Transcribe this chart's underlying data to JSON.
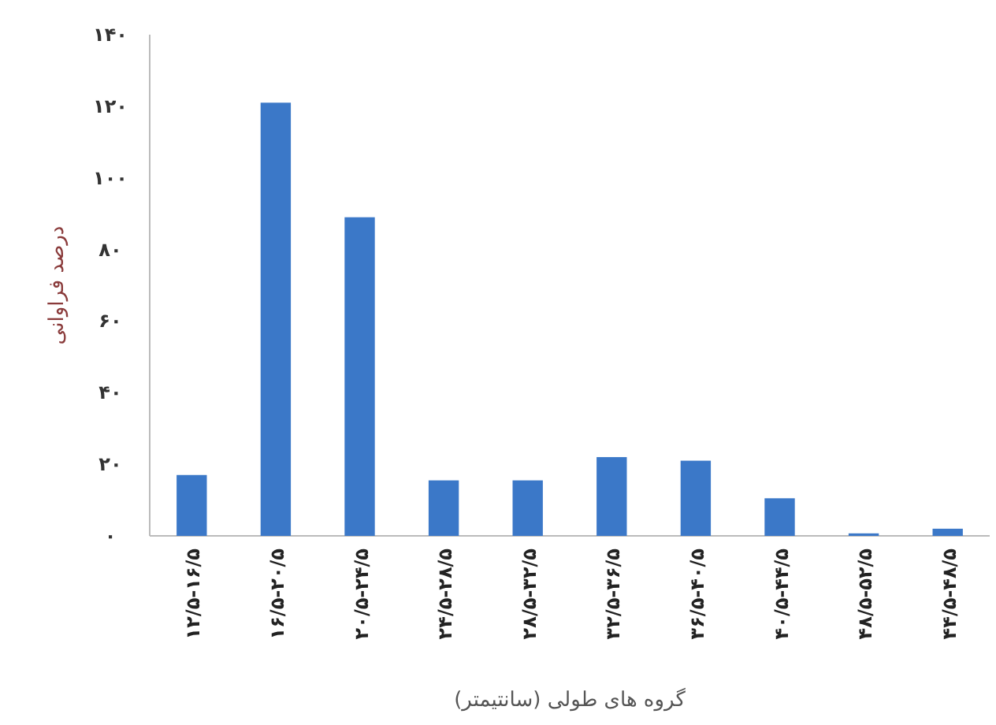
{
  "chart_data": {
    "type": "bar",
    "xlabel": "گروه های طولی (سانتیمتر)",
    "ylabel": "درصد فراوانی",
    "categories": [
      "۱۲/۵-۱۶/۵",
      "۱۶/۵-۲۰/۵",
      "۲۰/۵-۲۴/۵",
      "۲۴/۵-۲۸/۵",
      "۲۸/۵-۳۲/۵",
      "۳۲/۵-۳۶/۵",
      "۳۶/۵-۴۰/۵",
      "۴۰/۵-۴۴/۵",
      "۴۸/۵-۵۲/۵",
      "۴۴/۵-۴۸/۵"
    ],
    "values": [
      17,
      121,
      89,
      15.5,
      15.5,
      22,
      21,
      10.5,
      0.7,
      2
    ],
    "color": "#3b78c8",
    "ylim": [
      0,
      140
    ],
    "yticks": [
      {
        "value": 0,
        "label": "۰"
      },
      {
        "value": 20,
        "label": "۲۰"
      },
      {
        "value": 40,
        "label": "۴۰"
      },
      {
        "value": 60,
        "label": "۶۰"
      },
      {
        "value": 80,
        "label": "۸۰"
      },
      {
        "value": 100,
        "label": "۱۰۰"
      },
      {
        "value": 120,
        "label": "۱۲۰"
      },
      {
        "value": 140,
        "label": "۱۴۰"
      }
    ],
    "grid": false
  }
}
